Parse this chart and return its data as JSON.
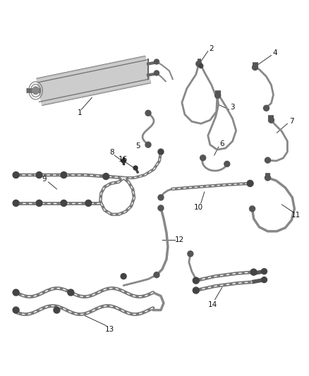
{
  "background_color": "#ffffff",
  "line_color": "#888888",
  "dark_color": "#444444",
  "label_color": "#111111",
  "figsize": [
    4.38,
    5.33
  ],
  "dpi": 100,
  "lw_hose": 1.8,
  "lw_thick": 3.2,
  "lw_line": 0.7,
  "label_fontsize": 7.5
}
